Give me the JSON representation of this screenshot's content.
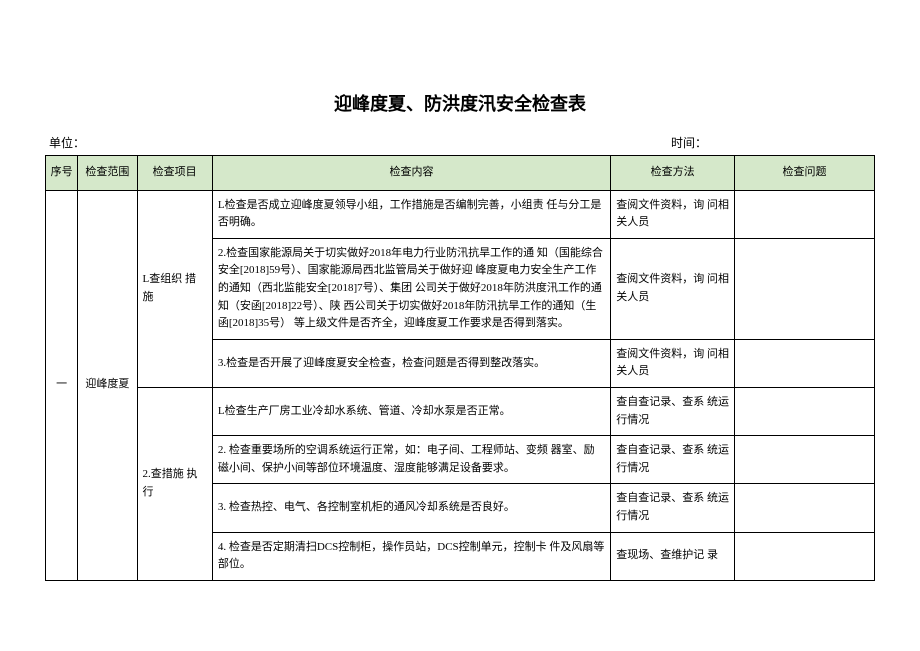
{
  "title": "迎峰度夏、防洪度汛安全检查表",
  "meta": {
    "unit_label": "单位：",
    "time_label": "时间："
  },
  "headers": {
    "seq": "序号",
    "scope": "检查范围",
    "item": "检查项目",
    "content": "检查内容",
    "method": "检查方法",
    "problem": "检查问题"
  },
  "rows": [
    {
      "seq": "一",
      "scope": "迎峰度夏",
      "item1": "L查组织 措施",
      "item2": "2.查措施 执行",
      "cells": [
        {
          "content": "L检查是否成立迎峰度夏领导小组，工作措施是否编制完善，小组责 任与分工是否明确。",
          "method": "查阅文件资料，询 问相关人员",
          "problem": ""
        },
        {
          "content": "2.检查国家能源局关于切实做好2018年电力行业防汛抗旱工作的通 知（国能综合安全[2018]59号）、国家能源局西北监管局关于做好迎 峰度夏电力安全生产工作的通知（西北监能安全[2018]7号）、集团 公司关于做好2018年防洪度汛工作的通知（安函[2018]22号）、陕 西公司关于切实做好2018年防汛抗旱工作的通知（生函[2018]35号） 等上级文件是否齐全，迎峰度夏工作要求是否得到落实。",
          "method": "查阅文件资料，询 问相关人员",
          "problem": ""
        },
        {
          "content": "3.检查是否开展了迎峰度夏安全检查，检查问题是否得到整改落实。",
          "method": "查阅文件资料，询 问相关人员",
          "problem": ""
        },
        {
          "content": "L检查生产厂房工业冷却水系统、管道、冷却水泵是否正常。",
          "method": "查自查记录、查系 统运行情况",
          "problem": ""
        },
        {
          "content": "2. 检查重要场所的空调系统运行正常，如：电子间、工程师站、变频 器室、励磁小间、保护小间等部位环境温度、湿度能够满足设备要求。",
          "method": "查自查记录、查系 统运行情况",
          "problem": ""
        },
        {
          "content": "3. 检查热控、电气、各控制室机柜的通风冷却系统是否良好。",
          "method": "查自查记录、查系 统运行情况",
          "problem": ""
        },
        {
          "content": "4. 检查是否定期清扫DCS控制柜，操作员站，DCS控制单元，控制卡 件及风扇等部位。",
          "method": "查现场、查维护记 录",
          "problem": ""
        }
      ]
    }
  ],
  "styling": {
    "header_bg": "#d5e8ca",
    "border_color": "#000000",
    "font_size_title": 18,
    "font_size_body": 11,
    "font_family": "SimSun"
  }
}
